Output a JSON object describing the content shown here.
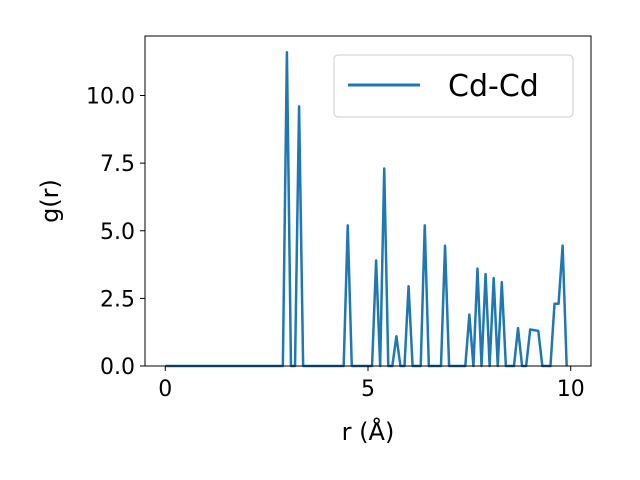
{
  "chart_data": {
    "type": "line",
    "title": "",
    "xlabel": "r (Å)",
    "ylabel": "g(r)",
    "xlim": [
      -0.5,
      10.5
    ],
    "ylim": [
      0,
      12.2
    ],
    "xticks": [
      0,
      5,
      10
    ],
    "xtick_labels": [
      "0",
      "5",
      "10"
    ],
    "yticks": [
      0,
      2.5,
      5,
      7.5,
      10
    ],
    "ytick_labels": [
      "0.0",
      "2.5",
      "5.0",
      "7.5",
      "10.0"
    ],
    "grid": false,
    "legend_position": "top-right",
    "series": [
      {
        "name": "Cd-Cd",
        "color": "#1f77b4",
        "x": [
          0,
          2.9,
          3.0,
          3.1,
          3.2,
          3.3,
          3.4,
          4.4,
          4.5,
          4.6,
          5.1,
          5.2,
          5.3,
          5.4,
          5.5,
          5.6,
          5.7,
          5.8,
          5.9,
          6.0,
          6.1,
          6.2,
          6.3,
          6.4,
          6.5,
          6.8,
          6.9,
          7.0,
          7.4,
          7.5,
          7.6,
          7.7,
          7.8,
          7.9,
          8.0,
          8.1,
          8.2,
          8.3,
          8.4,
          8.5,
          8.6,
          8.7,
          8.8,
          8.9,
          9.0,
          9.2,
          9.3,
          9.4,
          9.5,
          9.6,
          9.7,
          9.8,
          9.9
        ],
        "y": [
          0,
          0,
          11.6,
          0,
          0,
          9.6,
          0,
          0,
          5.2,
          0,
          0,
          3.9,
          0,
          7.3,
          0,
          0,
          1.1,
          0,
          0,
          2.95,
          0,
          0,
          0,
          5.2,
          0,
          0,
          4.45,
          0,
          0,
          1.9,
          0,
          3.6,
          0,
          3.4,
          0,
          3.25,
          0,
          3.1,
          0,
          0,
          0,
          1.4,
          0,
          0,
          1.35,
          1.3,
          0,
          0,
          0,
          2.3,
          2.3,
          4.45,
          0
        ]
      }
    ]
  }
}
